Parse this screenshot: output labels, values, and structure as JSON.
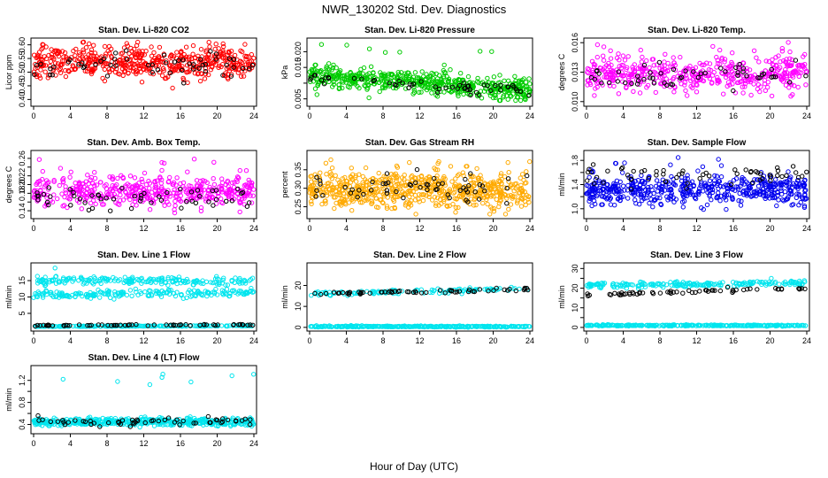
{
  "figure": {
    "title": "NWR_130202  Std. Dev. Diagnostics",
    "xlabel": "Hour of Day (UTC)"
  },
  "chart_data": [
    {
      "type": "scatter",
      "title": "Stan. Dev. Li-820 CO2",
      "ylabel": "Licor ppm",
      "xlim": [
        0,
        24
      ],
      "xticks": [
        0,
        4,
        8,
        12,
        16,
        20,
        24
      ],
      "ylim": [
        0.385,
        0.615
      ],
      "yticks": [
        0.4,
        0.45,
        0.5,
        0.55,
        0.6
      ],
      "ytick_labels": [
        "0.40",
        "0.45",
        "0.50",
        "0.55",
        "0.60"
      ],
      "series": [
        {
          "color": "#ff0000",
          "role": "all samples",
          "count": 520,
          "center": 0.535,
          "spread": 0.028,
          "min": 0.39,
          "max": 0.61
        },
        {
          "color": "#000000",
          "role": "reference",
          "count": 55,
          "center": 0.525,
          "spread": 0.02,
          "min": 0.46,
          "max": 0.58
        }
      ]
    },
    {
      "type": "scatter",
      "title": "Stan. Dev. Li-820 Pressure",
      "ylabel": "kPa",
      "xlim": [
        0,
        24
      ],
      "xticks": [
        0,
        4,
        8,
        12,
        16,
        20,
        24
      ],
      "ylim": [
        0.0035,
        0.0235
      ],
      "yticks": [
        0.005,
        0.01,
        0.015,
        0.02
      ],
      "ytick_labels": [
        "0.005",
        "",
        "0.015",
        "0.020"
      ],
      "series": [
        {
          "color": "#00cc00",
          "role": "all samples",
          "count": 560,
          "center_start": 0.0125,
          "center_end": 0.0075,
          "spread": 0.0018,
          "min": 0.0045,
          "max": 0.023
        },
        {
          "color": "#000000",
          "role": "reference",
          "count": 55,
          "center_start": 0.0115,
          "center_end": 0.0075,
          "spread": 0.001,
          "min": 0.005,
          "max": 0.02
        }
      ]
    },
    {
      "type": "scatter",
      "title": "Stan. Dev. Li-820 Temp.",
      "ylabel": "degrees C",
      "xlim": [
        0,
        24
      ],
      "xticks": [
        0,
        4,
        8,
        12,
        16,
        20,
        24
      ],
      "ylim": [
        0.0098,
        0.0162
      ],
      "yticks": [
        0.01,
        0.013,
        0.016
      ],
      "ytick_labels": [
        "0.010",
        "0.013",
        "0.016"
      ],
      "series": [
        {
          "color": "#ff00ff",
          "role": "all samples",
          "count": 480,
          "center": 0.0128,
          "spread": 0.0009,
          "min": 0.01,
          "max": 0.0161
        },
        {
          "color": "#000000",
          "role": "reference",
          "count": 55,
          "center": 0.0127,
          "spread": 0.0006,
          "min": 0.0105,
          "max": 0.0155
        }
      ]
    },
    {
      "type": "scatter",
      "title": "Stan. Dev. Amb. Box Temp.",
      "ylabel": "degrees C",
      "xlim": [
        0,
        24
      ],
      "xticks": [
        0,
        4,
        8,
        12,
        16,
        20,
        24
      ],
      "ylim": [
        0.128,
        0.272
      ],
      "yticks": [
        0.14,
        0.16,
        0.18,
        0.2,
        0.22,
        0.24,
        0.26
      ],
      "ytick_labels": [
        "0.14",
        "",
        "0.18",
        "0.20",
        "0.22",
        "",
        "0.26"
      ],
      "series": [
        {
          "color": "#ff00ff",
          "role": "all samples",
          "count": 480,
          "center": 0.185,
          "spread": 0.018,
          "min": 0.135,
          "max": 0.26
        },
        {
          "color": "#000000",
          "role": "reference",
          "count": 55,
          "center": 0.17,
          "spread": 0.015,
          "min": 0.135,
          "max": 0.22
        }
      ]
    },
    {
      "type": "scatter",
      "title": "Stan. Dev. Gas Stream RH",
      "ylabel": "percent",
      "xlim": [
        0,
        24
      ],
      "xticks": [
        0,
        4,
        8,
        12,
        16,
        20,
        24
      ],
      "ylim": [
        0.225,
        0.395
      ],
      "yticks": [
        0.25,
        0.3,
        0.35
      ],
      "ytick_labels": [
        "0.25",
        "0.30",
        "0.35"
      ],
      "series": [
        {
          "color": "#ffaa00",
          "role": "all samples",
          "count": 640,
          "center": 0.295,
          "spread": 0.025,
          "min": 0.23,
          "max": 0.38
        },
        {
          "color": "#000000",
          "role": "reference",
          "count": 55,
          "center": 0.305,
          "spread": 0.02,
          "min": 0.25,
          "max": 0.36
        }
      ]
    },
    {
      "type": "scatter",
      "title": "Stan. Dev. Sample Flow",
      "ylabel": "ml/min",
      "xlim": [
        0,
        24
      ],
      "xticks": [
        0,
        4,
        8,
        12,
        16,
        20,
        24
      ],
      "ylim": [
        0.88,
        1.92
      ],
      "yticks": [
        1.0,
        1.2,
        1.4,
        1.6,
        1.8
      ],
      "ytick_labels": [
        "1.0",
        "",
        "1.4",
        "",
        "1.8"
      ],
      "series": [
        {
          "color": "#0000ee",
          "role": "all samples",
          "count": 520,
          "center": 1.32,
          "spread": 0.12,
          "min": 0.9,
          "max": 1.85
        },
        {
          "color": "#000000",
          "role": "reference",
          "count": 60,
          "center": 1.55,
          "spread": 0.1,
          "min": 1.2,
          "max": 1.85
        }
      ]
    },
    {
      "type": "scatter",
      "title": "Stan. Dev. Line 1 Flow",
      "ylabel": "ml/min",
      "xlim": [
        0,
        24
      ],
      "xticks": [
        0,
        4,
        8,
        12,
        16,
        20,
        24
      ],
      "ylim": [
        0.4,
        19.6
      ],
      "yticks": [
        5,
        10,
        15
      ],
      "ytick_labels": [
        "5",
        "10",
        "15"
      ],
      "series": [
        {
          "color": "#00e5ee",
          "role": "upper band",
          "count": 200,
          "center_start": 15.0,
          "center_end": 15.0,
          "spread": 0.6,
          "min": 13,
          "max": 19
        },
        {
          "color": "#00e5ee",
          "role": "middle band",
          "count": 200,
          "center_start": 10.5,
          "center_end": 11.5,
          "spread": 0.6,
          "min": 8,
          "max": 13
        },
        {
          "color": "#00e5ee",
          "role": "lower band",
          "count": 200,
          "center_start": 1.0,
          "center_end": 1.2,
          "spread": 0.05,
          "min": 0.8,
          "max": 1.5
        },
        {
          "color": "#000000",
          "role": "reference",
          "count": 60,
          "center_start": 1.3,
          "center_end": 1.5,
          "spread": 0.08,
          "min": 1.0,
          "max": 2.0
        }
      ]
    },
    {
      "type": "scatter",
      "title": "Stan. Dev. Line 2 Flow",
      "ylabel": "ml/min",
      "xlim": [
        0,
        24
      ],
      "xticks": [
        0,
        4,
        8,
        12,
        16,
        20,
        24
      ],
      "ylim": [
        -0.5,
        29.5
      ],
      "yticks": [
        0,
        10,
        20
      ],
      "ytick_labels": [
        "0",
        "10",
        "20"
      ],
      "series": [
        {
          "color": "#00e5ee",
          "role": "upper band",
          "count": 120,
          "center_start": 16.0,
          "center_end": 18.5,
          "spread": 0.5,
          "min": 12,
          "max": 29
        },
        {
          "color": "#00e5ee",
          "role": "lower band",
          "count": 300,
          "center_start": 0.4,
          "center_end": 0.4,
          "spread": 0.15,
          "min": 0,
          "max": 1
        },
        {
          "color": "#000000",
          "role": "reference",
          "count": 60,
          "center_start": 16.0,
          "center_end": 18.0,
          "spread": 0.3,
          "min": 15,
          "max": 19
        }
      ]
    },
    {
      "type": "scatter",
      "title": "Stan. Dev. Line 3 Flow",
      "ylabel": "ml/min",
      "xlim": [
        0,
        24
      ],
      "xticks": [
        0,
        4,
        8,
        12,
        16,
        20,
        24
      ],
      "ylim": [
        -0.5,
        31.5
      ],
      "yticks": [
        0,
        5,
        10,
        15,
        20,
        25,
        30
      ],
      "ytick_labels": [
        "0",
        "",
        "10",
        "",
        "20",
        "",
        "30"
      ],
      "series": [
        {
          "color": "#00e5ee",
          "role": "upper band",
          "count": 200,
          "center_start": 21.5,
          "center_end": 22.5,
          "spread": 0.7,
          "min": 5,
          "max": 31
        },
        {
          "color": "#00e5ee",
          "role": "lower band",
          "count": 300,
          "center_start": 1.0,
          "center_end": 1.0,
          "spread": 0.15,
          "min": 0.4,
          "max": 1.5
        },
        {
          "color": "#000000",
          "role": "reference",
          "count": 60,
          "center_start": 16.5,
          "center_end": 20.0,
          "spread": 0.4,
          "min": 15,
          "max": 21
        }
      ]
    },
    {
      "type": "scatter",
      "title": "Stan. Dev. Line 4 (LT) Flow",
      "ylabel": "ml/min",
      "xlim": [
        0,
        24
      ],
      "xticks": [
        0,
        4,
        8,
        12,
        16,
        20,
        24
      ],
      "ylim": [
        0.28,
        1.42
      ],
      "yticks": [
        0.4,
        0.6,
        0.8,
        1.0,
        1.2
      ],
      "ytick_labels": [
        "0.4",
        "",
        "0.8",
        "",
        "1.2"
      ],
      "series": [
        {
          "color": "#00e5ee",
          "role": "all samples",
          "count": 480,
          "center": 0.45,
          "spread": 0.035,
          "min": 0.35,
          "max": 1.4
        },
        {
          "color": "#000000",
          "role": "reference",
          "count": 55,
          "center": 0.45,
          "spread": 0.04,
          "min": 0.36,
          "max": 0.56
        }
      ]
    }
  ]
}
